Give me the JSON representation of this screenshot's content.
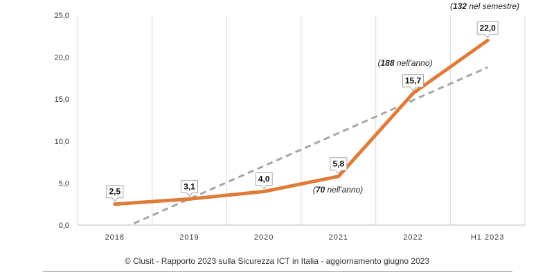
{
  "chart_data": {
    "type": "line",
    "categories": [
      "2018",
      "2019",
      "2020",
      "2021",
      "2022",
      "H1 2023"
    ],
    "series": [
      {
        "values": [
          2.5,
          3.1,
          4.0,
          5.8,
          15.7,
          22.0
        ],
        "labels": [
          "2,5",
          "3,1",
          "4,0",
          "5,8",
          "15,7",
          "22,0"
        ],
        "color": "#E07B39"
      },
      {
        "type": "trendline",
        "values": [
          -0.8,
          2.9,
          6.8,
          10.7,
          14.6,
          18.8
        ],
        "color": "#A6A6A6"
      }
    ],
    "ylim": [
      0,
      25
    ],
    "yticks": [
      "0,0",
      "5,0",
      "10,0",
      "15,0",
      "20,0",
      "25,0"
    ],
    "grid": "vertical",
    "annotations": [
      {
        "category": "H1 2023",
        "bold": "132",
        "text": " nel semestre)",
        "open": "("
      },
      {
        "category": "2022",
        "bold": "188",
        "text": " nell'anno)",
        "open": "("
      },
      {
        "category": "2021",
        "bold": "70",
        "text": " nell'anno)",
        "open": "("
      }
    ]
  },
  "caption": "© Clusit - Rapporto 2023 sulla Sicurezza ICT in Italia - aggiornamento giugno 2023"
}
